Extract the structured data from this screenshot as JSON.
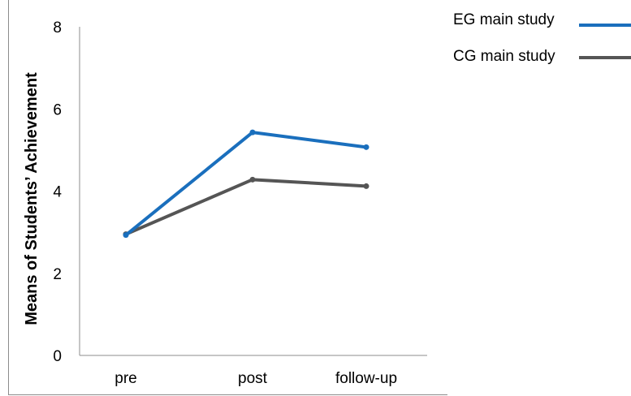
{
  "chart_data": {
    "type": "line",
    "categories": [
      "pre",
      "post",
      "follow-up"
    ],
    "series": [
      {
        "name": "EG main study",
        "values": [
          2.93,
          5.43,
          5.07
        ],
        "color": "#1a6fbd"
      },
      {
        "name": "CG main study",
        "values": [
          2.95,
          4.28,
          4.12
        ],
        "color": "#555555"
      }
    ],
    "ylim": [
      0,
      8
    ],
    "yticks": [
      0,
      2,
      4,
      6,
      8
    ],
    "ylabel": "Means of Students’   Achievement",
    "xlabel": "",
    "title": "",
    "grid": false,
    "legend_position": "top-right"
  }
}
